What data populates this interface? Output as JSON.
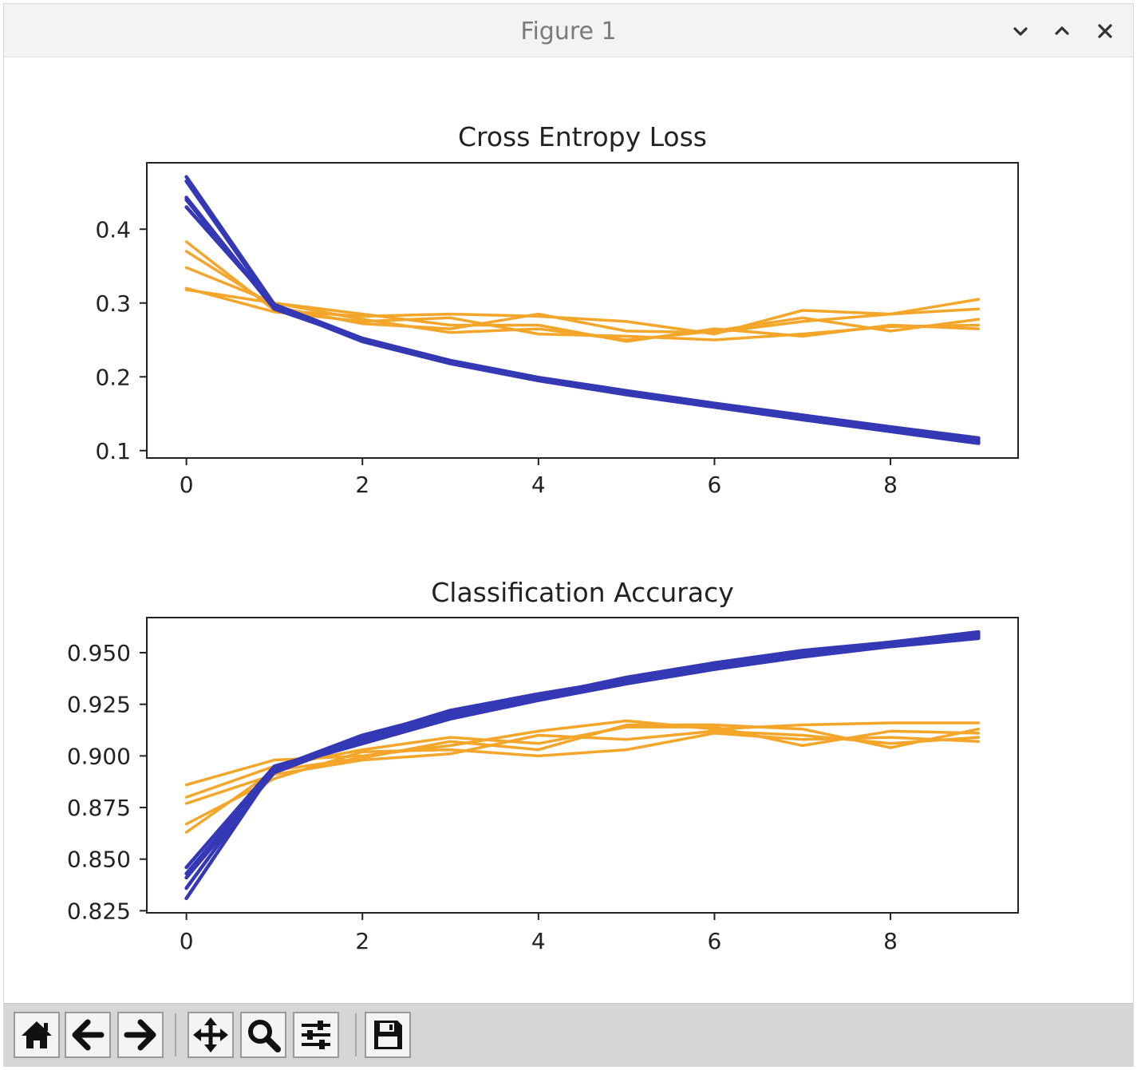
{
  "window": {
    "title": "Figure 1"
  },
  "colors": {
    "train": "#3538b5",
    "test": "#f4a62a",
    "axes": "#222222",
    "titlebar": "#f3f3f3",
    "toolbar": "#d6d6d6"
  },
  "icons": {
    "minimize": "chevron-down-icon",
    "maximize": "chevron-up-icon",
    "close": "close-icon",
    "home": "home-icon",
    "back": "arrow-left-icon",
    "forward": "arrow-right-icon",
    "pan": "move-icon",
    "zoom": "magnifier-icon",
    "configure": "sliders-icon",
    "save": "floppy-disk-icon"
  },
  "chart_data": [
    {
      "type": "line",
      "title": "Cross Entropy Loss",
      "xlabel": "",
      "ylabel": "",
      "x": [
        0,
        1,
        2,
        3,
        4,
        5,
        6,
        7,
        8,
        9
      ],
      "xticks": [
        0,
        2,
        4,
        6,
        8
      ],
      "yticks": [
        0.1,
        0.2,
        0.3,
        0.4
      ],
      "xlim": [
        -0.45,
        9.45
      ],
      "ylim": [
        0.09,
        0.49
      ],
      "grid": false,
      "legend": "none",
      "series": [
        {
          "group": "train",
          "values": [
            0.471,
            0.298,
            0.252,
            0.222,
            0.199,
            0.181,
            0.164,
            0.148,
            0.132,
            0.117
          ]
        },
        {
          "group": "train",
          "values": [
            0.443,
            0.293,
            0.25,
            0.22,
            0.197,
            0.179,
            0.162,
            0.146,
            0.13,
            0.115
          ]
        },
        {
          "group": "train",
          "values": [
            0.43,
            0.296,
            0.249,
            0.219,
            0.196,
            0.178,
            0.161,
            0.144,
            0.128,
            0.113
          ]
        },
        {
          "group": "train",
          "values": [
            0.44,
            0.292,
            0.251,
            0.221,
            0.198,
            0.177,
            0.16,
            0.143,
            0.127,
            0.111
          ]
        },
        {
          "group": "train",
          "values": [
            0.465,
            0.295,
            0.248,
            0.218,
            0.195,
            0.176,
            0.159,
            0.142,
            0.126,
            0.11
          ]
        },
        {
          "group": "test",
          "values": [
            0.383,
            0.29,
            0.282,
            0.285,
            0.282,
            0.275,
            0.258,
            0.29,
            0.285,
            0.305
          ]
        },
        {
          "group": "test",
          "values": [
            0.37,
            0.295,
            0.272,
            0.265,
            0.285,
            0.262,
            0.26,
            0.275,
            0.285,
            0.292
          ]
        },
        {
          "group": "test",
          "values": [
            0.348,
            0.3,
            0.278,
            0.26,
            0.265,
            0.25,
            0.262,
            0.28,
            0.262,
            0.278
          ]
        },
        {
          "group": "test",
          "values": [
            0.32,
            0.288,
            0.275,
            0.28,
            0.258,
            0.255,
            0.25,
            0.258,
            0.268,
            0.27
          ]
        },
        {
          "group": "test",
          "values": [
            0.318,
            0.3,
            0.285,
            0.27,
            0.27,
            0.248,
            0.265,
            0.255,
            0.27,
            0.265
          ]
        }
      ]
    },
    {
      "type": "line",
      "title": "Classification Accuracy",
      "xlabel": "",
      "ylabel": "",
      "x": [
        0,
        1,
        2,
        3,
        4,
        5,
        6,
        7,
        8,
        9
      ],
      "xticks": [
        0,
        2,
        4,
        6,
        8
      ],
      "yticks": [
        0.825,
        0.85,
        0.875,
        0.9,
        0.925,
        0.95
      ],
      "yticklabels": [
        "0.825",
        "0.850",
        "0.875",
        "0.900",
        "0.925",
        "0.950"
      ],
      "xlim": [
        -0.45,
        9.45
      ],
      "ylim": [
        0.824,
        0.967
      ],
      "grid": false,
      "legend": "none",
      "series": [
        {
          "group": "train",
          "values": [
            0.831,
            0.894,
            0.91,
            0.921,
            0.929,
            0.938,
            0.945,
            0.951,
            0.955,
            0.959
          ]
        },
        {
          "group": "train",
          "values": [
            0.841,
            0.892,
            0.908,
            0.92,
            0.928,
            0.936,
            0.943,
            0.95,
            0.955,
            0.96
          ]
        },
        {
          "group": "train",
          "values": [
            0.846,
            0.895,
            0.907,
            0.919,
            0.929,
            0.937,
            0.944,
            0.949,
            0.954,
            0.958
          ]
        },
        {
          "group": "train",
          "values": [
            0.843,
            0.893,
            0.909,
            0.922,
            0.93,
            0.937,
            0.945,
            0.95,
            0.955,
            0.96
          ]
        },
        {
          "group": "train",
          "values": [
            0.836,
            0.894,
            0.906,
            0.918,
            0.927,
            0.935,
            0.942,
            0.948,
            0.953,
            0.957
          ]
        },
        {
          "group": "test",
          "values": [
            0.886,
            0.898,
            0.9,
            0.905,
            0.912,
            0.917,
            0.913,
            0.915,
            0.916,
            0.916
          ]
        },
        {
          "group": "test",
          "values": [
            0.88,
            0.895,
            0.903,
            0.909,
            0.906,
            0.914,
            0.914,
            0.905,
            0.912,
            0.911
          ]
        },
        {
          "group": "test",
          "values": [
            0.877,
            0.891,
            0.898,
            0.901,
            0.91,
            0.908,
            0.912,
            0.91,
            0.906,
            0.909
          ]
        },
        {
          "group": "test",
          "values": [
            0.867,
            0.889,
            0.902,
            0.903,
            0.9,
            0.903,
            0.911,
            0.908,
            0.909,
            0.907
          ]
        },
        {
          "group": "test",
          "values": [
            0.863,
            0.893,
            0.899,
            0.907,
            0.903,
            0.915,
            0.915,
            0.913,
            0.904,
            0.913
          ]
        }
      ]
    }
  ]
}
